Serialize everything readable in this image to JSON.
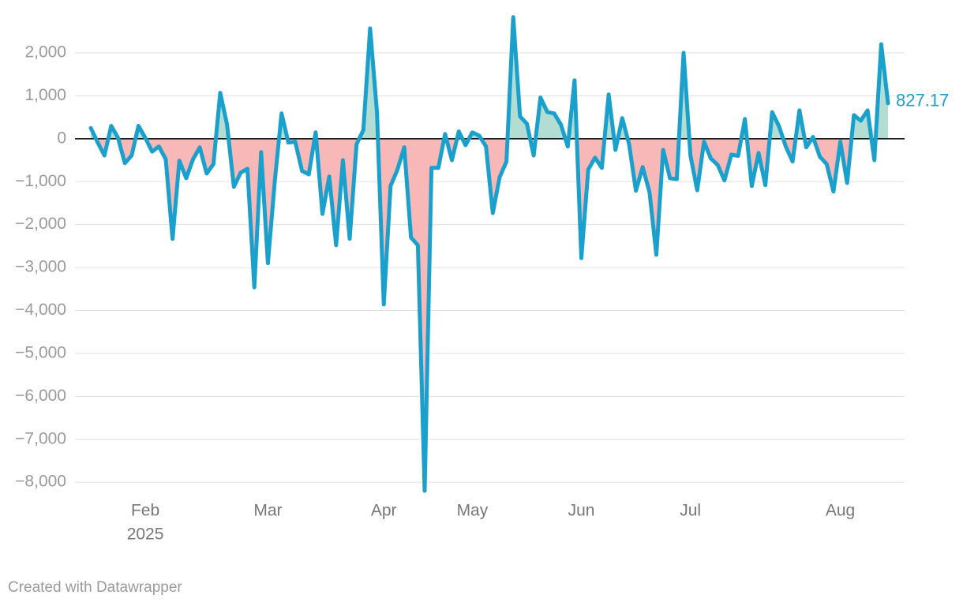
{
  "chart_data": {
    "type": "area-line",
    "categories": [
      null,
      null,
      null,
      null,
      null,
      null,
      null,
      null,
      "Feb",
      null,
      null,
      null,
      null,
      null,
      null,
      null,
      null,
      null,
      null,
      null,
      null,
      null,
      null,
      null,
      null,
      null,
      "Mar",
      null,
      null,
      null,
      null,
      null,
      null,
      null,
      null,
      null,
      null,
      null,
      null,
      null,
      null,
      null,
      null,
      "Apr",
      null,
      null,
      null,
      null,
      null,
      null,
      null,
      null,
      null,
      null,
      null,
      null,
      "May",
      null,
      null,
      null,
      null,
      null,
      null,
      null,
      null,
      null,
      null,
      null,
      null,
      null,
      null,
      null,
      "Jun",
      null,
      null,
      null,
      null,
      null,
      null,
      null,
      null,
      null,
      null,
      null,
      null,
      null,
      null,
      null,
      "Jul",
      null,
      null,
      null,
      null,
      null,
      null,
      null,
      null,
      null,
      null,
      null,
      null,
      null,
      null,
      null,
      null,
      null,
      null,
      null,
      null,
      null,
      "Aug",
      null,
      null,
      null,
      null,
      null,
      null,
      null
    ],
    "year_label": "2025",
    "series": [
      {
        "color": "#1aa0cc",
        "positive_fill": "#b3ddd3",
        "negative_fill": "#f8b8b8",
        "values": [
          250,
          -80,
          -390,
          300,
          20,
          -570,
          -390,
          300,
          20,
          -300,
          -180,
          -480,
          -2330,
          -510,
          -920,
          -480,
          -200,
          -810,
          -590,
          1070,
          330,
          -1120,
          -790,
          -700,
          -3460,
          -310,
          -2900,
          -990,
          590,
          -90,
          -70,
          -750,
          -830,
          150,
          -1750,
          -880,
          -2480,
          -500,
          -2330,
          -130,
          200,
          2570,
          610,
          -3860,
          -1100,
          -720,
          -200,
          -2300,
          -2480,
          -8200,
          -680,
          -680,
          110,
          -500,
          170,
          -150,
          150,
          70,
          -180,
          -1730,
          -900,
          -530,
          2830,
          520,
          350,
          -390,
          960,
          620,
          590,
          330,
          -180,
          1360,
          -2780,
          -720,
          -440,
          -680,
          1030,
          -260,
          480,
          -130,
          -1210,
          -660,
          -1250,
          -2700,
          -260,
          -920,
          -940,
          2000,
          -390,
          -1200,
          -70,
          -460,
          -610,
          -970,
          -370,
          -400,
          460,
          -1100,
          -330,
          -1080,
          620,
          290,
          -180,
          -530,
          660,
          -200,
          40,
          -420,
          -590,
          -1230,
          -70,
          -1030,
          550,
          420,
          660,
          -500,
          2200,
          827.17
        ]
      }
    ],
    "ylim": [
      -8300,
      2900
    ],
    "yticks": [
      {
        "value": 2000,
        "label": "2,000"
      },
      {
        "value": 1000,
        "label": "1,000"
      },
      0,
      {
        "value": -1000,
        "label": "−1,000"
      },
      {
        "value": -2000,
        "label": "−2,000"
      },
      {
        "value": -3000,
        "label": "−3,000"
      },
      {
        "value": -4000,
        "label": "−4,000"
      },
      {
        "value": -5000,
        "label": "−5,000"
      },
      {
        "value": -6000,
        "label": "−6,000"
      },
      {
        "value": -7000,
        "label": "−7,000"
      },
      {
        "value": -8000,
        "label": "−8,000"
      }
    ],
    "grid": true,
    "credit": "Created with Datawrapper"
  }
}
